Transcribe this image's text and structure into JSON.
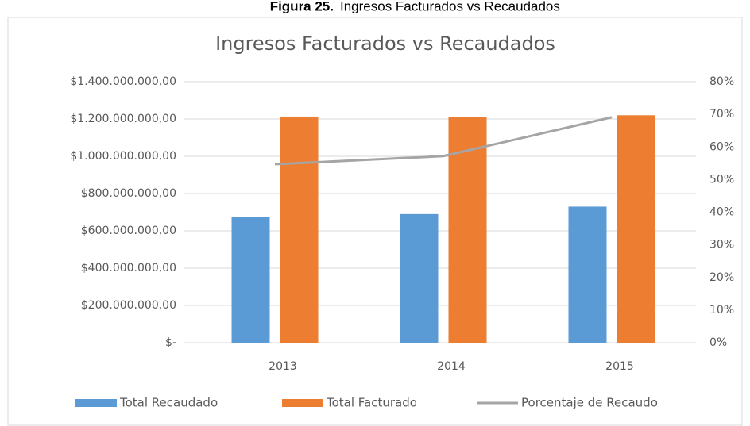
{
  "caption": {
    "label": "Figura 25.",
    "text": "Ingresos Facturados vs Recaudados"
  },
  "chart_data": {
    "type": "bar-line",
    "title": "Ingresos Facturados vs Recaudados",
    "categories": [
      "2013",
      "2014",
      "2015"
    ],
    "series": [
      {
        "name": "Total Recaudado",
        "color": "#5b9bd5",
        "type": "bar",
        "values": [
          675000000,
          690000000,
          730000000
        ]
      },
      {
        "name": "Total Facturado",
        "color": "#ed7d31",
        "type": "bar",
        "values": [
          1213000000,
          1210000000,
          1220000000
        ]
      },
      {
        "name": "Porcentaje de Recaudo",
        "color": "#a5a5a5",
        "type": "line",
        "axis": "y2",
        "values": [
          54.7,
          57.2,
          69.1
        ]
      }
    ],
    "ylim": [
      0,
      1400000000
    ],
    "yticks": [
      {
        "value": 0,
        "label": "$-"
      },
      {
        "value": 200000000,
        "label": "$200.000.000,00"
      },
      {
        "value": 400000000,
        "label": "$400.000.000,00"
      },
      {
        "value": 600000000,
        "label": "$600.000.000,00"
      },
      {
        "value": 800000000,
        "label": "$800.000.000,00"
      },
      {
        "value": 1000000000,
        "label": "$1.000.000.000,00"
      },
      {
        "value": 1200000000,
        "label": "$1.200.000.000,00"
      },
      {
        "value": 1400000000,
        "label": "$1.400.000.000,00"
      }
    ],
    "y2lim": [
      0,
      80
    ],
    "y2ticks": [
      {
        "value": 0,
        "label": "0%"
      },
      {
        "value": 10,
        "label": "10%"
      },
      {
        "value": 20,
        "label": "20%"
      },
      {
        "value": 30,
        "label": "30%"
      },
      {
        "value": 40,
        "label": "40%"
      },
      {
        "value": 50,
        "label": "50%"
      },
      {
        "value": 60,
        "label": "60%"
      },
      {
        "value": 70,
        "label": "70%"
      },
      {
        "value": 80,
        "label": "80%"
      }
    ],
    "grid": true,
    "legend": "bottom"
  }
}
